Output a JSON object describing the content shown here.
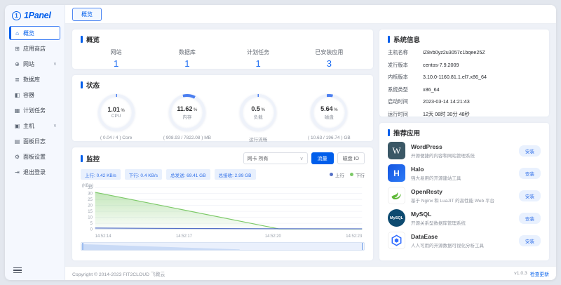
{
  "brand": {
    "name": "1Panel",
    "badge": "1"
  },
  "topbar": {
    "active_tab": "概览"
  },
  "sidebar": {
    "items": [
      {
        "label": "概览",
        "glyph": "⌂",
        "active": true
      },
      {
        "label": "应用商店",
        "glyph": "⊞"
      },
      {
        "label": "网站",
        "glyph": "⊕",
        "expandable": true,
        "chevron": "∨"
      },
      {
        "label": "数据库",
        "glyph": "≣"
      },
      {
        "label": "容器",
        "glyph": "◧"
      },
      {
        "label": "计划任务",
        "glyph": "▦"
      },
      {
        "label": "主机",
        "glyph": "▣",
        "expandable": true,
        "chevron": "∨"
      },
      {
        "label": "面板日志",
        "glyph": "▤"
      },
      {
        "label": "面板设置",
        "glyph": "⚙"
      },
      {
        "label": "退出登录",
        "glyph": "⇥"
      }
    ]
  },
  "overview": {
    "title": "概览",
    "stats": [
      {
        "label": "网站",
        "value": "1"
      },
      {
        "label": "数据库",
        "value": "1"
      },
      {
        "label": "计划任务",
        "value": "1"
      },
      {
        "label": "已安装应用",
        "value": "3"
      }
    ]
  },
  "status": {
    "title": "状态",
    "arc_color": "#4c7ff0",
    "track_color": "#eef2fa",
    "gauges": [
      {
        "value": "1.01",
        "unit": "%",
        "label": "CPU",
        "detail": "( 0.04 / 4 ) Core",
        "percent": 1.01
      },
      {
        "value": "11.62",
        "unit": "%",
        "label": "内存",
        "detail": "( 908.93 / 7822.08 ) MB",
        "percent": 11.62
      },
      {
        "value": "0.5",
        "unit": "%",
        "label": "负载",
        "detail": "运行流畅",
        "percent": 0.5
      },
      {
        "value": "5.64",
        "unit": "%",
        "label": "磁盘",
        "detail": "( 10.63 / 196.74 ) GB",
        "percent": 5.64
      }
    ]
  },
  "monitor": {
    "title": "监控",
    "select_label": "网卡 所有",
    "select_chevron": "∨",
    "traffic_button": "流量",
    "disk_io_button": "磁盘 IO",
    "tags": [
      "上行: 0.42 KB/s",
      "下行: 0.4 KB/s",
      "总发送: 69.41 GB",
      "总接收: 2.99 GB"
    ]
  },
  "chart_data": {
    "type": "area",
    "unit": "(KB/s)",
    "x": [
      "14:52:14",
      "14:52:17",
      "14:52:20",
      "14:52:23"
    ],
    "t_range": [
      0,
      9
    ],
    "ylim": [
      0,
      35
    ],
    "yticks": [
      0,
      5,
      10,
      15,
      20,
      25,
      30,
      35
    ],
    "grid": true,
    "legend_position": "top-right",
    "series": [
      {
        "name": "上行",
        "color": "#5470c6",
        "points": [
          [
            0,
            1.1
          ],
          [
            2,
            0.8
          ],
          [
            4,
            0.6
          ],
          [
            6.2,
            0.5
          ],
          [
            9,
            0.45
          ]
        ]
      },
      {
        "name": "下行",
        "color": "#7cc967",
        "points": [
          [
            0,
            31
          ],
          [
            6.2,
            0.3
          ],
          [
            9,
            0.25
          ]
        ]
      }
    ]
  },
  "system_info": {
    "title": "系统信息",
    "rows": [
      {
        "label": "主机名称",
        "value": "iZ8vb0yz2u3057c1bqee25Z"
      },
      {
        "label": "发行版本",
        "value": "centos-7.9.2009"
      },
      {
        "label": "内核版本",
        "value": "3.10.0-1160.81.1.el7.x86_64"
      },
      {
        "label": "系统类型",
        "value": "x86_64"
      },
      {
        "label": "启动时间",
        "value": "2023-03-14 14:21:43"
      },
      {
        "label": "运行时间",
        "value": "12天 08时 30分 48秒"
      }
    ]
  },
  "apps": {
    "title": "推荐应用",
    "install_label": "安装",
    "items": [
      {
        "name": "WordPress",
        "desc": "开源便捷的内容和网站管理系统",
        "icon_text": "W"
      },
      {
        "name": "Halo",
        "desc": "强大易用的开源建站工具",
        "icon_text": "H"
      },
      {
        "name": "OpenResty",
        "desc": "基于 Nginx 和 LuaJIT 的高性能 Web 平台",
        "icon_text": ""
      },
      {
        "name": "MySQL",
        "desc": "开源关系型数据库管理系统",
        "icon_text": "MySQL"
      },
      {
        "name": "DataEase",
        "desc": "人人可用的开源数据可视化分析工具",
        "icon_text": ""
      }
    ]
  },
  "footer": {
    "copyright": "Copyright © 2014-2023 FIT2CLOUD 飞致云",
    "version": "v1.0.3",
    "update_link": "检查更新"
  }
}
